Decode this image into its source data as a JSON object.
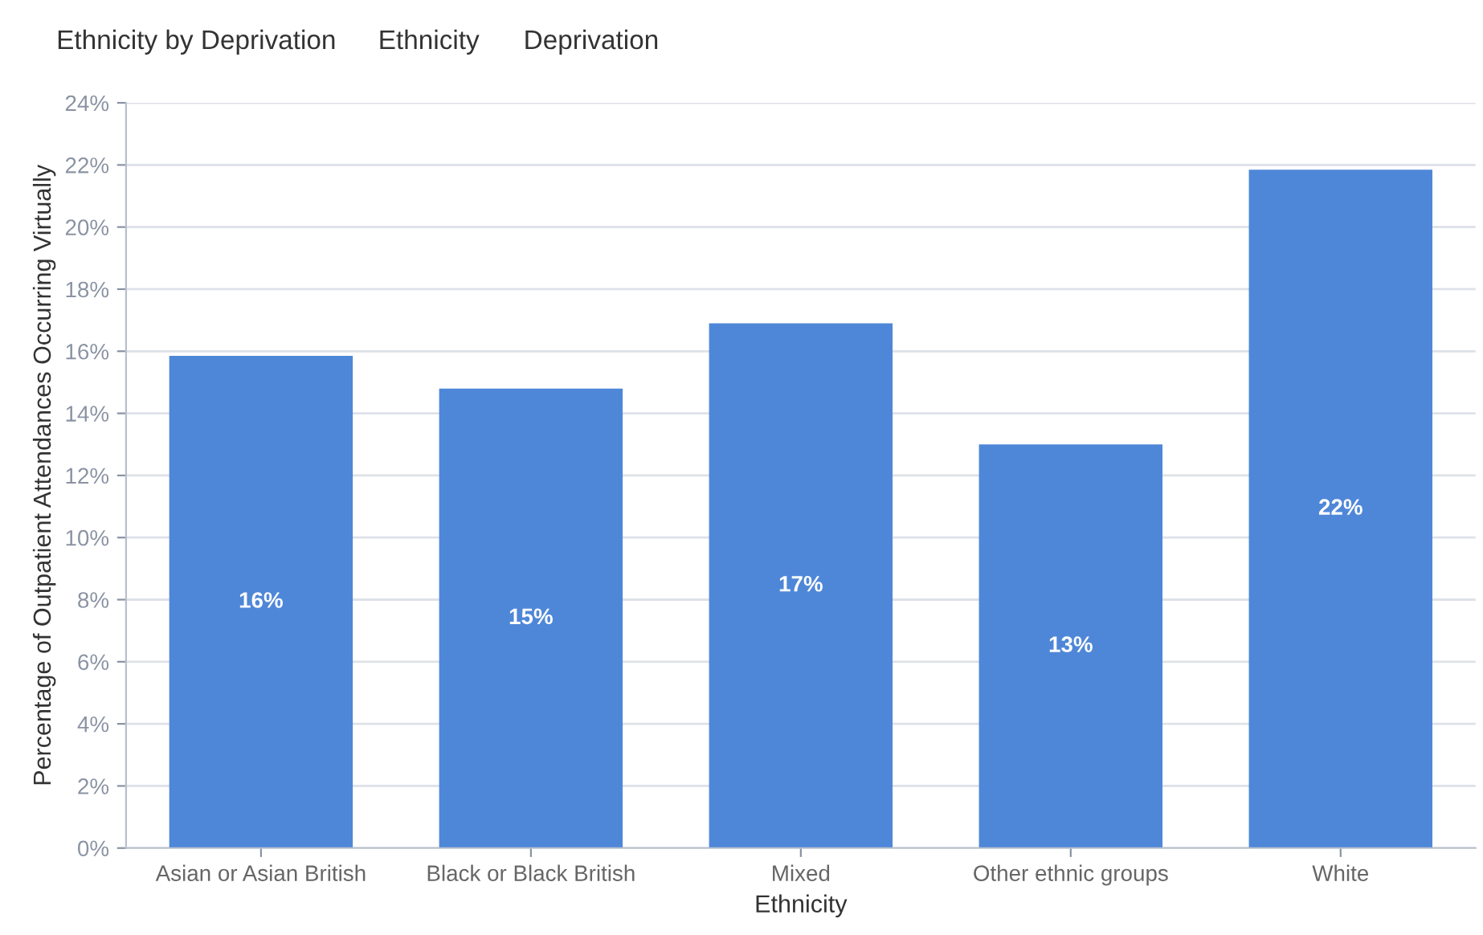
{
  "chart_data": {
    "type": "bar",
    "annotations": [
      "Ethnicity by Deprivation",
      "Ethnicity",
      "Deprivation"
    ],
    "xlabel": "Ethnicity",
    "ylabel": "Percentage of Outpatient Attendances Occurring Virtually",
    "categories": [
      "Asian or Asian British",
      "Black or Black British",
      "Mixed",
      "Other ethnic groups",
      "White"
    ],
    "values": [
      15.85,
      14.8,
      16.9,
      13.0,
      21.85
    ],
    "value_labels": [
      "16%",
      "15%",
      "17%",
      "13%",
      "22%"
    ],
    "color": "#4f87d8",
    "ylim": [
      0,
      24
    ],
    "yticks": [
      {
        "value": 0,
        "label": "0%"
      },
      {
        "value": 2,
        "label": "2%"
      },
      {
        "value": 4,
        "label": "4%"
      },
      {
        "value": 6,
        "label": "6%"
      },
      {
        "value": 8,
        "label": "8%"
      },
      {
        "value": 10,
        "label": "10%"
      },
      {
        "value": 12,
        "label": "12%"
      },
      {
        "value": 14,
        "label": "14%"
      },
      {
        "value": 16,
        "label": "16%"
      },
      {
        "value": 18,
        "label": "18%"
      },
      {
        "value": 20,
        "label": "20%"
      },
      {
        "value": 22,
        "label": "22%"
      },
      {
        "value": 24,
        "label": "24%"
      }
    ],
    "grid": "y"
  }
}
